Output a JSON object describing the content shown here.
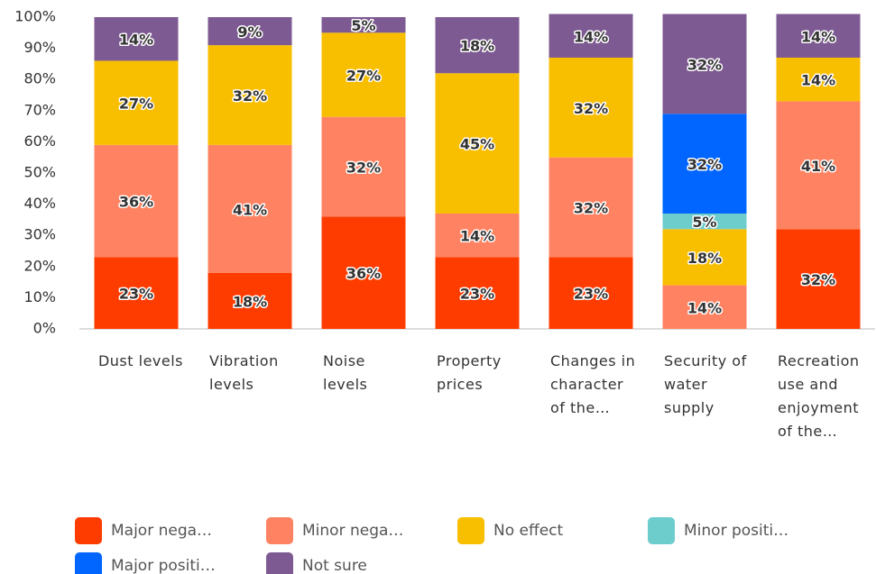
{
  "chart_data": {
    "type": "stacked_bar",
    "categories": [
      "Dust levels",
      "Vibration levels",
      "Noise levels",
      "Property prices",
      "Changes in character of the…",
      "Security of water supply",
      "Recreation use and enjoyment of the…"
    ],
    "series": [
      {
        "name": "Major nega…",
        "color": "#ff3c00",
        "values": [
          23,
          18,
          36,
          23,
          23,
          0,
          32
        ],
        "value_labels": [
          "23%",
          "18%",
          "36%",
          "23%",
          "23%",
          null,
          "32%"
        ]
      },
      {
        "name": "Minor nega…",
        "color": "#ff8362",
        "values": [
          36,
          41,
          32,
          14,
          32,
          14,
          41
        ],
        "value_labels": [
          "36%",
          "41%",
          "32%",
          "14%",
          "32%",
          "14%",
          "41%"
        ]
      },
      {
        "name": "No effect",
        "color": "#f8be00",
        "values": [
          27,
          32,
          27,
          45,
          32,
          18,
          14
        ],
        "value_labels": [
          "27%",
          "32%",
          "27%",
          "45%",
          "32%",
          "18%",
          "14%"
        ]
      },
      {
        "name": "Minor positi…",
        "color": "#6dcccc",
        "values": [
          0,
          0,
          0,
          0,
          0,
          5,
          0
        ],
        "value_labels": [
          null,
          null,
          null,
          null,
          null,
          "5%",
          null
        ]
      },
      {
        "name": "Major positi…",
        "color": "#0066ff",
        "values": [
          0,
          0,
          0,
          0,
          0,
          32,
          0
        ],
        "value_labels": [
          null,
          null,
          null,
          null,
          null,
          "32%",
          null
        ]
      },
      {
        "name": "Not sure",
        "color": "#7e5a92",
        "values": [
          14,
          9,
          5,
          18,
          14,
          32,
          14
        ],
        "value_labels": [
          "14%",
          "9%",
          "5%",
          "18%",
          "14%",
          "32%",
          "14%"
        ]
      }
    ],
    "ylim": [
      0,
      100
    ],
    "yticks": [
      {
        "value": 0,
        "label": "0%"
      },
      {
        "value": 10,
        "label": "10%"
      },
      {
        "value": 20,
        "label": "20%"
      },
      {
        "value": 30,
        "label": "30%"
      },
      {
        "value": 40,
        "label": "40%"
      },
      {
        "value": 50,
        "label": "50%"
      },
      {
        "value": 60,
        "label": "60%"
      },
      {
        "value": 70,
        "label": "70%"
      },
      {
        "value": 80,
        "label": "80%"
      },
      {
        "value": 90,
        "label": "90%"
      },
      {
        "value": 100,
        "label": "100%"
      }
    ]
  }
}
